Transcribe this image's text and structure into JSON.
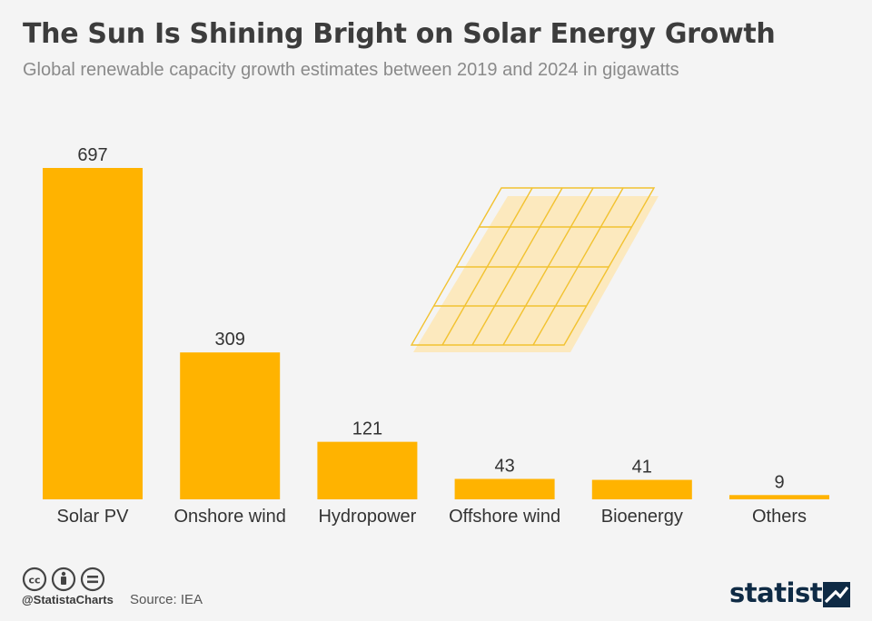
{
  "header": {
    "title": "The Sun Is Shining Bright on Solar Energy Growth",
    "subtitle": "Global renewable capacity growth estimates between 2019 and 2024 in gigawatts"
  },
  "chart_data": {
    "type": "bar",
    "title": "The Sun Is Shining Bright on Solar Energy Growth",
    "subtitle": "Global renewable capacity growth estimates between 2019 and 2024 in gigawatts",
    "categories": [
      "Solar PV",
      "Onshore wind",
      "Hydropower",
      "Offshore wind",
      "Bioenergy",
      "Others"
    ],
    "values": [
      697,
      309,
      121,
      43,
      41,
      9
    ],
    "xlabel": "",
    "ylabel": "",
    "ylim": [
      0,
      697
    ],
    "grid": false,
    "bar_color": "#ffb300"
  },
  "footer": {
    "handle": "@StatistaCharts",
    "source": "Source: IEA",
    "brand": "statista"
  },
  "colors": {
    "bar": "#ffb300",
    "background": "#f4f4f4",
    "panel_outline": "#f2c230",
    "panel_shadow": "#fde6b4",
    "brand": "#0f2b45"
  },
  "icons": [
    "creative-commons-icon",
    "attribution-icon",
    "no-derivatives-icon",
    "statista-logo-icon",
    "solar-panel-icon"
  ]
}
